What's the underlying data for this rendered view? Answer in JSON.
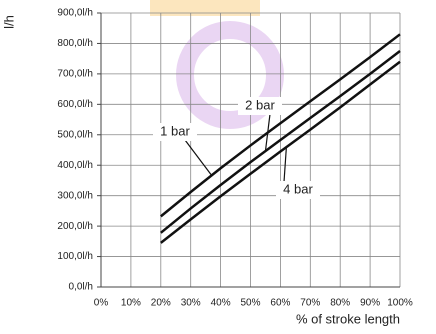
{
  "chart_data": {
    "type": "line",
    "y_label": "l/h",
    "x_label": "% of stroke length",
    "x": [
      20,
      30,
      40,
      50,
      60,
      70,
      80,
      90,
      100
    ],
    "series": [
      {
        "name": "1 bar",
        "color": "#111111",
        "values": [
          232,
          312,
          390,
          465,
          538,
          610,
          682,
          755,
          830
        ]
      },
      {
        "name": "2 bar",
        "color": "#111111",
        "values": [
          178,
          258,
          335,
          410,
          483,
          555,
          627,
          700,
          775
        ]
      },
      {
        "name": "4 bar",
        "color": "#111111",
        "values": [
          145,
          222,
          298,
          372,
          445,
          517,
          590,
          665,
          740
        ]
      }
    ],
    "xlim": [
      0,
      100
    ],
    "xticks": [
      {
        "value": 0,
        "label": "0%"
      },
      {
        "value": 10,
        "label": "10%"
      },
      {
        "value": 20,
        "label": "20%"
      },
      {
        "value": 30,
        "label": "30%"
      },
      {
        "value": 40,
        "label": "40%"
      },
      {
        "value": 50,
        "label": "50%"
      },
      {
        "value": 60,
        "label": "60%"
      },
      {
        "value": 70,
        "label": "70%"
      },
      {
        "value": 80,
        "label": "80%"
      },
      {
        "value": 90,
        "label": "90%"
      },
      {
        "value": 100,
        "label": "100%"
      }
    ],
    "ylim": [
      0,
      900
    ],
    "yticks": [
      {
        "value": 0,
        "label": "0,0l/h"
      },
      {
        "value": 100,
        "label": "100,0l/h"
      },
      {
        "value": 200,
        "label": "200,0l/h"
      },
      {
        "value": 300,
        "label": "300,0l/h"
      },
      {
        "value": 400,
        "label": "400,0l/h"
      },
      {
        "value": 500,
        "label": "500,0l/h"
      },
      {
        "value": 600,
        "label": "600,0l/h"
      },
      {
        "value": 700,
        "label": "700,0l/h"
      },
      {
        "value": 800,
        "label": "800,0l/h"
      },
      {
        "value": 900,
        "label": "900,0l/h"
      }
    ],
    "grid": true
  }
}
